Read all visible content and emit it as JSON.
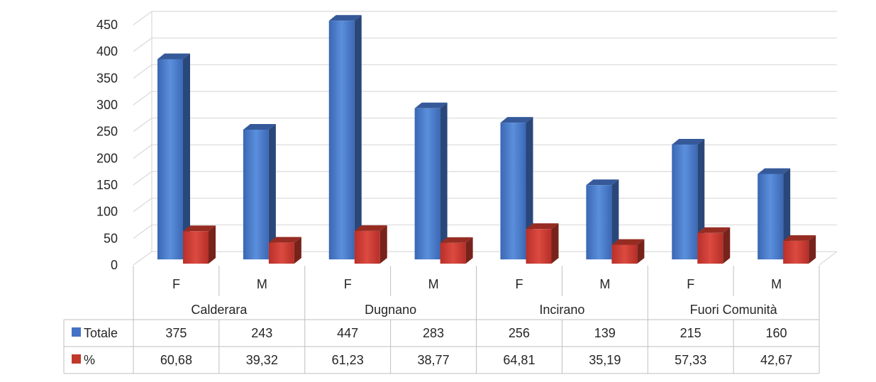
{
  "chart_data": {
    "type": "bar",
    "title": "",
    "xlabel": "",
    "ylabel": "",
    "ylim": [
      0,
      450
    ],
    "yticks": [
      "0",
      "50",
      "100",
      "150",
      "200",
      "250",
      "300",
      "350",
      "400",
      "450"
    ],
    "grid": true,
    "three_d": true,
    "groups": [
      {
        "label": "Calderara",
        "categories": [
          "F",
          "M"
        ]
      },
      {
        "label": "Dugnano",
        "categories": [
          "F",
          "M"
        ]
      },
      {
        "label": "Incirano",
        "categories": [
          "F",
          "M"
        ]
      },
      {
        "label": "Fuori Comunità",
        "categories": [
          "F",
          "M"
        ]
      }
    ],
    "categories": [
      "F",
      "M",
      "F",
      "M",
      "F",
      "M",
      "F",
      "M"
    ],
    "series": [
      {
        "name": "Totale",
        "color": "#4472C4",
        "values": [
          375,
          243,
          447,
          283,
          256,
          139,
          215,
          160
        ],
        "display_values": [
          "375",
          "243",
          "447",
          "283",
          "256",
          "139",
          "215",
          "160"
        ]
      },
      {
        "name": "%",
        "color": "#C0392B",
        "values": [
          60.68,
          39.32,
          61.23,
          38.77,
          64.81,
          35.19,
          57.33,
          42.67
        ],
        "display_values": [
          "60,68",
          "39,32",
          "61,23",
          "38,77",
          "64,81",
          "35,19",
          "57,33",
          "42,67"
        ]
      }
    ],
    "legend": "data-table"
  }
}
